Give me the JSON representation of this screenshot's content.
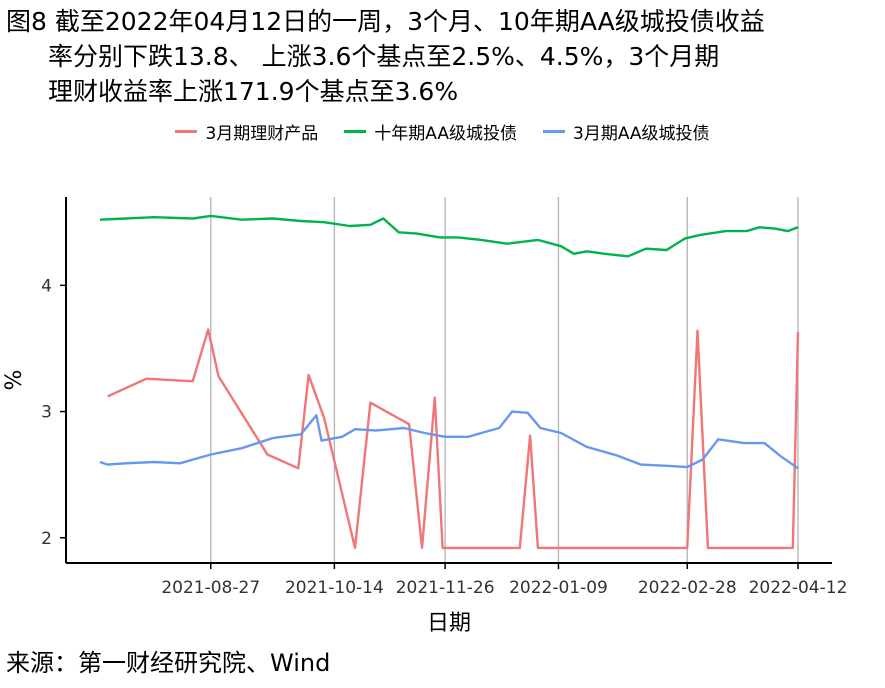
{
  "title_lines": [
    "图8 截至2022年04月12日的一周，3个月、10年期AA级城投债收益",
    "率分别下跌13.8、 上涨3.6个基点至2.5%、4.5%，3个月期",
    "理财收益率上涨171.9个基点至3.6%"
  ],
  "source": "来源：第一财经研究院、Wind",
  "chart_data": {
    "type": "line",
    "xlabel": "日期",
    "ylabel": "%",
    "xlim": [
      "2021-07-15",
      "2022-04-12"
    ],
    "ylim": [
      1.8,
      4.7
    ],
    "x_ticks": [
      "2021-08-27",
      "2021-10-14",
      "2021-11-26",
      "2022-01-09",
      "2022-02-28",
      "2022-04-12"
    ],
    "y_ticks": [
      2,
      3,
      4
    ],
    "grid": "vertical major",
    "legend": "top-center",
    "series": [
      {
        "name": "3月期理财产品",
        "color": "#F07777",
        "x": [
          "2021-07-18",
          "2021-08-02",
          "2021-08-20",
          "2021-08-26",
          "2021-08-30",
          "2021-09-18",
          "2021-09-30",
          "2021-10-04",
          "2021-10-10",
          "2021-10-22",
          "2021-10-28",
          "2021-11-12",
          "2021-11-17",
          "2021-11-22",
          "2021-11-25",
          "2021-12-03",
          "2021-12-25",
          "2021-12-29",
          "2022-01-01",
          "2022-01-04",
          "2022-02-23",
          "2022-02-28",
          "2022-03-04",
          "2022-03-08",
          "2022-03-10",
          "2022-03-22",
          "2022-04-10",
          "2022-04-12"
        ],
        "y": [
          3.12,
          3.26,
          3.24,
          3.65,
          3.28,
          2.66,
          2.55,
          3.29,
          2.95,
          1.92,
          3.07,
          2.9,
          1.92,
          3.11,
          1.92,
          1.92,
          1.92,
          2.81,
          1.92,
          1.92,
          1.92,
          1.92,
          3.64,
          1.92,
          1.92,
          1.92,
          1.92,
          3.63
        ]
      },
      {
        "name": "十年期AA级城投债",
        "color": "#00B34A",
        "x": [
          "2021-07-15",
          "2021-07-25",
          "2021-08-05",
          "2021-08-20",
          "2021-08-27",
          "2021-09-08",
          "2021-09-20",
          "2021-10-01",
          "2021-10-10",
          "2021-10-20",
          "2021-10-28",
          "2021-11-02",
          "2021-11-08",
          "2021-11-15",
          "2021-11-24",
          "2021-12-01",
          "2021-12-10",
          "2021-12-20",
          "2022-01-01",
          "2022-01-10",
          "2022-01-15",
          "2022-01-20",
          "2022-01-27",
          "2022-02-05",
          "2022-02-12",
          "2022-02-20",
          "2022-02-27",
          "2022-03-05",
          "2022-03-15",
          "2022-03-23",
          "2022-03-28",
          "2022-04-03",
          "2022-04-08",
          "2022-04-12"
        ],
        "y": [
          4.52,
          4.53,
          4.54,
          4.53,
          4.55,
          4.52,
          4.53,
          4.51,
          4.5,
          4.47,
          4.48,
          4.53,
          4.42,
          4.41,
          4.38,
          4.38,
          4.36,
          4.33,
          4.36,
          4.31,
          4.25,
          4.27,
          4.25,
          4.23,
          4.29,
          4.28,
          4.37,
          4.4,
          4.43,
          4.43,
          4.46,
          4.45,
          4.43,
          4.46
        ]
      },
      {
        "name": "3月期AA级城投债",
        "color": "#6699EE",
        "x": [
          "2021-07-15",
          "2021-07-18",
          "2021-07-25",
          "2021-08-05",
          "2021-08-15",
          "2021-08-27",
          "2021-09-08",
          "2021-09-20",
          "2021-10-01",
          "2021-10-07",
          "2021-10-09",
          "2021-10-17",
          "2021-10-22",
          "2021-10-30",
          "2021-11-10",
          "2021-11-18",
          "2021-11-26",
          "2021-12-05",
          "2021-12-10",
          "2021-12-17",
          "2021-12-22",
          "2021-12-28",
          "2022-01-02",
          "2022-01-10",
          "2022-01-20",
          "2022-02-01",
          "2022-02-10",
          "2022-02-20",
          "2022-02-28",
          "2022-03-06",
          "2022-03-12",
          "2022-03-22",
          "2022-03-30",
          "2022-04-05",
          "2022-04-12"
        ],
        "y": [
          2.6,
          2.58,
          2.59,
          2.6,
          2.59,
          2.66,
          2.71,
          2.79,
          2.82,
          2.97,
          2.77,
          2.8,
          2.86,
          2.85,
          2.87,
          2.83,
          2.8,
          2.8,
          2.83,
          2.87,
          3.0,
          2.99,
          2.87,
          2.83,
          2.72,
          2.65,
          2.58,
          2.57,
          2.56,
          2.62,
          2.78,
          2.75,
          2.75,
          2.65,
          2.55
        ]
      }
    ]
  }
}
